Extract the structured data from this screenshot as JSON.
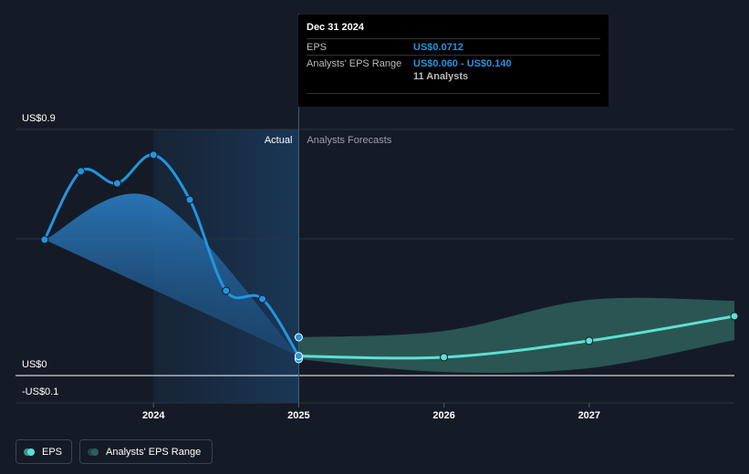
{
  "chart_data": {
    "type": "line",
    "xlim": [
      2023.05,
      2028
    ],
    "xticks": [
      2024,
      2025,
      2026,
      2027
    ],
    "ylim": [
      -0.1,
      0.9
    ],
    "yticks": [
      {
        "value": 0.9,
        "label": "US$0.9"
      },
      {
        "value": 0,
        "label": "US$0"
      },
      {
        "value": -0.1,
        "label": "-US$0.1"
      }
    ],
    "ygrid": [
      0.5
    ],
    "highlight": [
      2024,
      2025
    ],
    "divider": 2025,
    "actual_label": "Actual",
    "forecast_label": "Analysts Forecasts",
    "series": [
      {
        "name": "EPS",
        "color": "#2394df",
        "forecast_color": "#5ce1d3",
        "x": [
          2023.25,
          2023.5,
          2023.75,
          2024,
          2024.25,
          2024.5,
          2024.75,
          2025,
          2026,
          2027,
          2028
        ],
        "values": [
          0.497,
          0.747,
          0.703,
          0.807,
          0.643,
          0.31,
          0.28,
          0.0712,
          0.067,
          0.127,
          0.217
        ]
      }
    ],
    "ranges": [
      {
        "name": "Analysts' EPS Range",
        "color": "#2a78bb",
        "x": [
          2023.25,
          2024,
          2025
        ],
        "low": [
          0.497,
          0.314,
          0.0712
        ],
        "high": [
          0.497,
          0.65,
          0.0712
        ]
      },
      {
        "color": "#2f5f5a",
        "x": [
          2025,
          2026,
          2027,
          2028
        ],
        "low": [
          0.06,
          0.013,
          0.027,
          0.13
        ],
        "high": [
          0.14,
          0.163,
          0.277,
          0.273
        ]
      }
    ],
    "tooltip": {
      "date": "Dec 31 2024",
      "rows": [
        [
          "EPS",
          "US$0.0712"
        ],
        [
          "Analysts' EPS Range",
          "US$0.060 - US$0.140"
        ]
      ],
      "footer": "11 Analysts"
    }
  }
}
